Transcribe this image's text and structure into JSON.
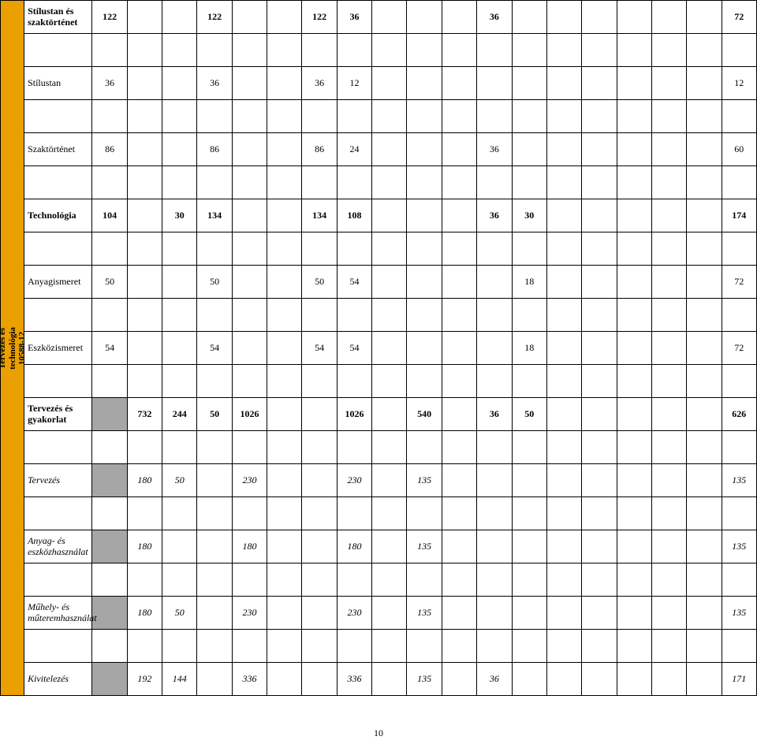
{
  "pageNumber": "10",
  "colors": {
    "sideCategoryBg": "#eaa000",
    "grayCellBg": "#a6a6a6",
    "border": "#000000",
    "background": "#ffffff"
  },
  "typography": {
    "fontFamily": "Times New Roman",
    "baseFontSize": 12,
    "rotatedLabelFontSize": 11
  },
  "layout": {
    "rowHeightPx": 42,
    "tallRowHeightPx": 100,
    "sideColWidthPx": 30,
    "labelColWidthPx": 86,
    "numColWidthPx": 44.2,
    "numCols": 19
  },
  "sideCategory": {
    "line1": "Tervezés és",
    "line2": "technológia",
    "line3": "10588-12"
  },
  "rows": [
    {
      "key": "stilustan_szaktortenet",
      "label": "Stílustan és szaktörténet",
      "style": "bold",
      "cells": [
        "122",
        "",
        "",
        "122",
        "",
        "",
        "122",
        "36",
        "",
        "",
        "",
        "36",
        "",
        "",
        "",
        "",
        "",
        "",
        "72"
      ],
      "tall": true
    },
    {
      "key": "stilustan",
      "label": "Stílustan",
      "style": "normal",
      "cells": [
        "36",
        "",
        "",
        "36",
        "",
        "",
        "36",
        "12",
        "",
        "",
        "",
        "",
        "",
        "",
        "",
        "",
        "",
        "",
        "12"
      ]
    },
    {
      "key": "szaktortenet",
      "label": "Szaktörténet",
      "style": "normal",
      "cells": [
        "86",
        "",
        "",
        "86",
        "",
        "",
        "86",
        "24",
        "",
        "",
        "",
        "36",
        "",
        "",
        "",
        "",
        "",
        "",
        "60"
      ]
    },
    {
      "key": "technologia",
      "label": "Technológia",
      "style": "bold",
      "cells": [
        "104",
        "",
        "30",
        "134",
        "",
        "",
        "134",
        "108",
        "",
        "",
        "",
        "36",
        "30",
        "",
        "",
        "",
        "",
        "",
        "174"
      ]
    },
    {
      "key": "anyagismeret",
      "label": "Anyagismeret",
      "style": "normal",
      "cells": [
        "50",
        "",
        "",
        "50",
        "",
        "",
        "50",
        "54",
        "",
        "",
        "",
        "",
        "18",
        "",
        "",
        "",
        "",
        "",
        "72"
      ]
    },
    {
      "key": "eszkozismeret",
      "label": "Eszközismeret",
      "style": "normal",
      "cells": [
        "54",
        "",
        "",
        "54",
        "",
        "",
        "54",
        "54",
        "",
        "",
        "",
        "",
        "18",
        "",
        "",
        "",
        "",
        "",
        "72"
      ]
    },
    {
      "key": "tervezes_gyakorlat",
      "label": "Tervezés és gyakorlat",
      "style": "bold",
      "cells": [
        "",
        "732",
        "244",
        "50",
        "1026",
        "",
        "",
        "1026",
        "",
        "540",
        "",
        "36",
        "50",
        "",
        "",
        "",
        "",
        "",
        "626"
      ],
      "grayCols": [
        0
      ]
    },
    {
      "key": "tervezes",
      "label": "Tervezés",
      "style": "italic",
      "cells": [
        "",
        "180",
        "50",
        "",
        "230",
        "",
        "",
        "230",
        "",
        "135",
        "",
        "",
        "",
        "",
        "",
        "",
        "",
        "",
        "135"
      ],
      "grayCols": [
        0
      ]
    },
    {
      "key": "anyag_eszkozhasznalat",
      "label": "Anyag- és eszközhasználat",
      "style": "italic",
      "cells": [
        "",
        "180",
        "",
        "",
        "180",
        "",
        "",
        "180",
        "",
        "135",
        "",
        "",
        "",
        "",
        "",
        "",
        "",
        "",
        "135"
      ],
      "grayCols": [
        0
      ]
    },
    {
      "key": "muhely_muteremhasznalat",
      "label": "Műhely- és műteremhasználat",
      "style": "italic",
      "cells": [
        "",
        "180",
        "50",
        "",
        "230",
        "",
        "",
        "230",
        "",
        "135",
        "",
        "",
        "",
        "",
        "",
        "",
        "",
        "",
        "135"
      ],
      "grayCols": [
        0
      ]
    },
    {
      "key": "kivitelezes",
      "label": "Kivitelezés",
      "style": "italic",
      "cells": [
        "",
        "192",
        "144",
        "",
        "336",
        "",
        "",
        "336",
        "",
        "135",
        "",
        "36",
        "",
        "",
        "",
        "",
        "",
        "",
        "171"
      ],
      "grayCols": [
        0
      ]
    }
  ]
}
